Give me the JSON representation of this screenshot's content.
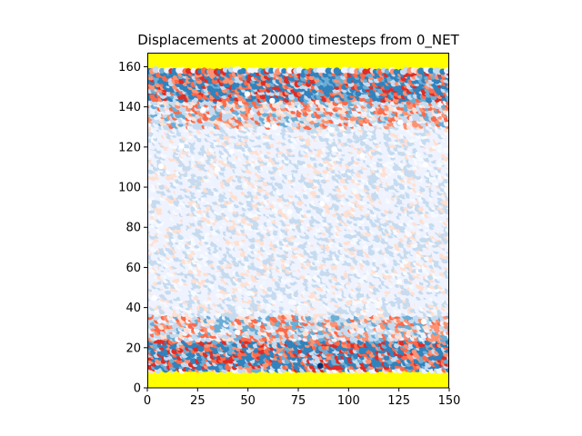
{
  "chart_data": {
    "type": "scatter",
    "title": "Displacements at 20000 timesteps from 0_NET",
    "xlabel": "",
    "ylabel": "",
    "xlim": [
      0,
      150
    ],
    "ylim": [
      0,
      167
    ],
    "aspect": "equal",
    "grid": false,
    "legend": "none",
    "x_ticks": [
      0,
      25,
      50,
      75,
      100,
      125,
      150
    ],
    "y_ticks": [
      0,
      20,
      40,
      60,
      80,
      100,
      120,
      140,
      160
    ],
    "fixed_atoms": {
      "color": "#ffff00",
      "bottom_band_y": [
        0,
        9
      ],
      "top_band_y": [
        158,
        167
      ]
    },
    "colormap": "RdBu_r-like",
    "displacement_profile": [
      {
        "y": 10,
        "level": "high"
      },
      {
        "y": 20,
        "level": "high"
      },
      {
        "y": 30,
        "level": "medium"
      },
      {
        "y": 40,
        "level": "low"
      },
      {
        "y": 80,
        "level": "very low"
      },
      {
        "y": 120,
        "level": "low"
      },
      {
        "y": 140,
        "level": "medium"
      },
      {
        "y": 155,
        "level": "high"
      }
    ]
  },
  "colors": {
    "fixed": "#ffff00",
    "deep_blue": "#3182bd",
    "mid_blue": "#6baed6",
    "light_blue": "#c6dbef",
    "pale_blue": "#eff3ff",
    "pale_red": "#fee0d2",
    "mid_red": "#fc9272",
    "red": "#fb6a4a",
    "deep_red": "#de2d26",
    "navy": "#08306b"
  }
}
